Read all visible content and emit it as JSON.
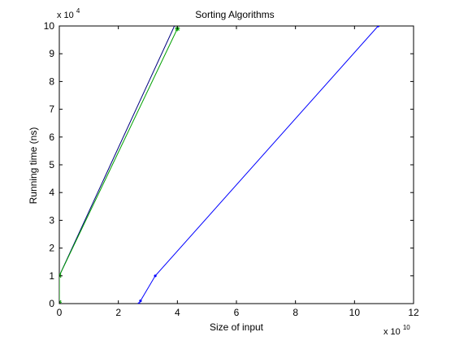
{
  "chart_data": {
    "type": "line",
    "title": "Sorting Algorithms",
    "xlabel": "Size of input",
    "ylabel": "Running time (ns)",
    "x_exponent_label": "x 10",
    "x_exponent": "10",
    "y_exponent_label": "x 10",
    "y_exponent": "4",
    "xlim": [
      0,
      12
    ],
    "ylim": [
      0,
      10
    ],
    "x_ticks": [
      0,
      2,
      4,
      6,
      8,
      10,
      12
    ],
    "y_ticks": [
      0,
      1,
      2,
      3,
      4,
      5,
      6,
      7,
      8,
      9,
      10
    ],
    "grid": false,
    "legend": "none",
    "series": [
      {
        "color": "#000080",
        "marker": "none",
        "points": [
          [
            0,
            0.05
          ],
          [
            0,
            1.0
          ],
          [
            3.9,
            10.0
          ]
        ]
      },
      {
        "color": "#00a000",
        "marker": "star",
        "points": [
          [
            0,
            0.05
          ],
          [
            0,
            1.0
          ],
          [
            4.0,
            9.9
          ]
        ]
      },
      {
        "color": "#0000ff",
        "marker": "point",
        "points": [
          [
            2.7,
            0.0
          ],
          [
            2.75,
            0.1
          ],
          [
            3.25,
            1.0
          ],
          [
            10.8,
            10.0
          ]
        ]
      }
    ],
    "axis_color": "#000000",
    "background": "#ffffff"
  }
}
